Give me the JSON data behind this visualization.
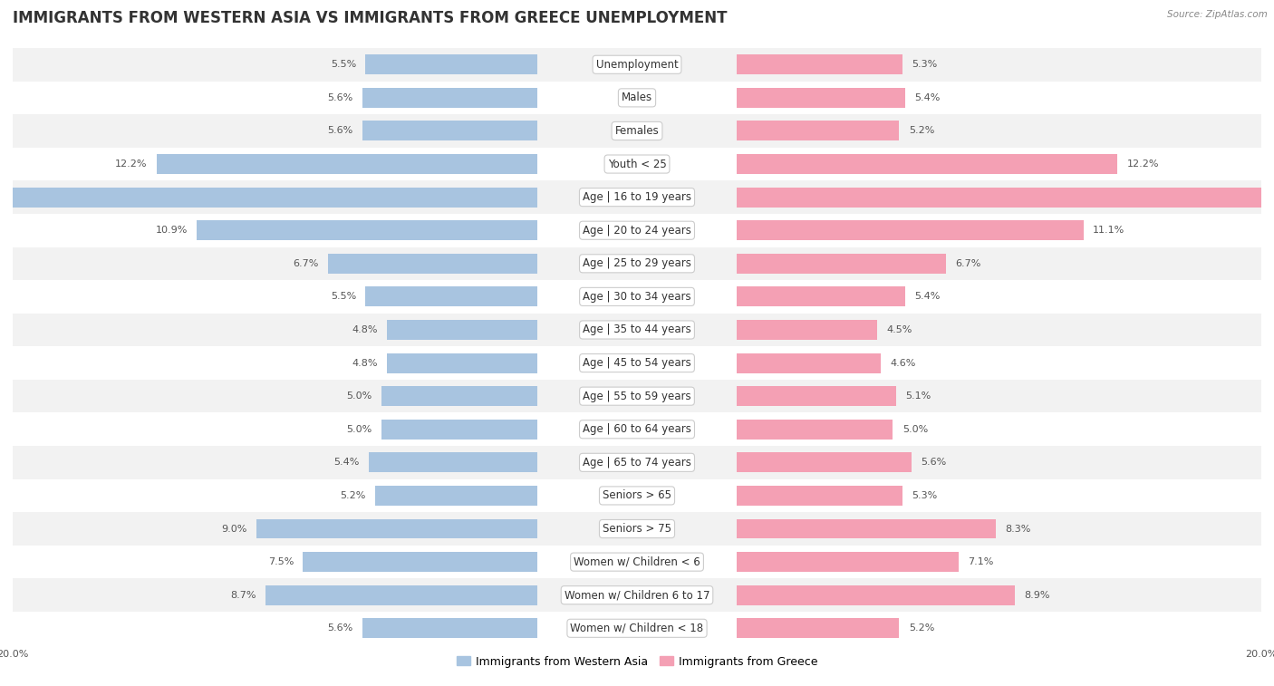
{
  "title": "IMMIGRANTS FROM WESTERN ASIA VS IMMIGRANTS FROM GREECE UNEMPLOYMENT",
  "source": "Source: ZipAtlas.com",
  "categories": [
    "Unemployment",
    "Males",
    "Females",
    "Youth < 25",
    "Age | 16 to 19 years",
    "Age | 20 to 24 years",
    "Age | 25 to 29 years",
    "Age | 30 to 34 years",
    "Age | 35 to 44 years",
    "Age | 45 to 54 years",
    "Age | 55 to 59 years",
    "Age | 60 to 64 years",
    "Age | 65 to 74 years",
    "Seniors > 65",
    "Seniors > 75",
    "Women w/ Children < 6",
    "Women w/ Children 6 to 17",
    "Women w/ Children < 18"
  ],
  "left_values": [
    5.5,
    5.6,
    5.6,
    12.2,
    18.0,
    10.9,
    6.7,
    5.5,
    4.8,
    4.8,
    5.0,
    5.0,
    5.4,
    5.2,
    9.0,
    7.5,
    8.7,
    5.6
  ],
  "right_values": [
    5.3,
    5.4,
    5.2,
    12.2,
    18.1,
    11.1,
    6.7,
    5.4,
    4.5,
    4.6,
    5.1,
    5.0,
    5.6,
    5.3,
    8.3,
    7.1,
    8.9,
    5.2
  ],
  "left_color": "#a8c4e0",
  "right_color": "#f4a0b4",
  "left_label": "Immigrants from Western Asia",
  "right_label": "Immigrants from Greece",
  "axis_max": 20.0,
  "bar_height": 0.6,
  "title_fontsize": 12,
  "label_fontsize": 8.5,
  "value_fontsize": 8,
  "legend_fontsize": 9,
  "bg_colors": [
    "#f2f2f2",
    "#ffffff"
  ]
}
